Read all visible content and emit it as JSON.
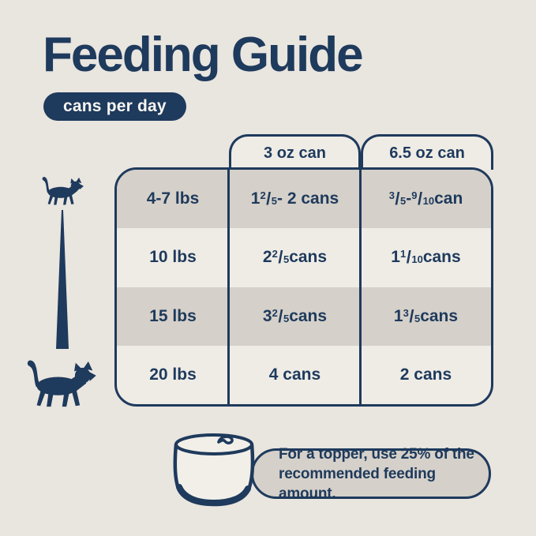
{
  "page": {
    "title": "Feeding Guide",
    "badge": "cans per day"
  },
  "table": {
    "col_headers": [
      "3 oz can",
      "6.5 oz can"
    ],
    "rows": [
      {
        "weight": "4-7 lbs",
        "small_can": "1 {2/5} - 2 cans",
        "large_can": "{3/5} - {9/10} can"
      },
      {
        "weight": "10 lbs",
        "small_can": "2 {2/5} cans",
        "large_can": "1 {1/10} cans"
      },
      {
        "weight": "15 lbs",
        "small_can": "3 {2/5} cans",
        "large_can": "1 {3/5} cans"
      },
      {
        "weight": "20 lbs",
        "small_can": "4 cans",
        "large_can": "2 cans"
      }
    ]
  },
  "note": {
    "line1": "For a topper, use 25% of the",
    "line2": "recommended feeding amount."
  },
  "icons": {
    "small_cat": "small-cat-icon",
    "size_wedge": "weight-increase-wedge",
    "large_cat": "large-cat-icon",
    "food_can": "wet-food-can-icon"
  },
  "colors": {
    "navy": "#1E3A5C",
    "background": "#E9E5DF",
    "row_gray": "#D5D0C9",
    "row_light": "#EFECE6",
    "can_fill": "#F2EFE9",
    "badge_text": "#F7F5F1"
  },
  "chart_data": {
    "type": "table",
    "title": "Feeding Guide",
    "subtitle": "cans per day",
    "columns": [
      "weight",
      "3 oz can",
      "6.5 oz can"
    ],
    "rows": [
      [
        "4-7 lbs",
        "1 2/5 - 2 cans",
        "3/5 - 9/10 can"
      ],
      [
        "10 lbs",
        "2 2/5 cans",
        "1 1/10 cans"
      ],
      [
        "15 lbs",
        "3 2/5 cans",
        "1 3/5 cans"
      ],
      [
        "20 lbs",
        "4 cans",
        "2 cans"
      ]
    ],
    "annotation": "For a topper, use 25% of the recommended feeding amount."
  }
}
